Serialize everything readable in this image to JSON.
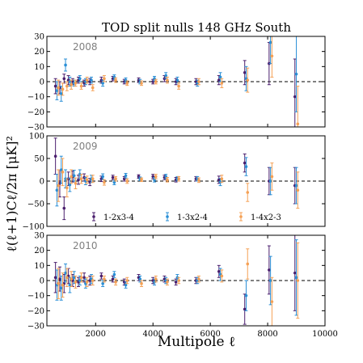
{
  "chart_data": {
    "type": "scatter",
    "title": "TOD split nulls 148 GHz South",
    "xlabel": "Multipole ℓ",
    "ylabel": "ℓ(ℓ+1)Cℓ/2π [μK]²",
    "xlim": [
      300,
      10000
    ],
    "x_ticks": [
      2000,
      4000,
      6000,
      8000,
      10000
    ],
    "grid": false,
    "legend_placement": "bottom-center of middle panel",
    "colors": {
      "1-2x3-4": "#4b1f6e",
      "1-3x2-4": "#2a8fd6",
      "1-4x2-3": "#f5a155"
    },
    "panels": [
      {
        "label": "2008",
        "ylim": [
          -30,
          30
        ],
        "y_ticks": [
          -30,
          -20,
          -10,
          0,
          10,
          20,
          30
        ],
        "reference_line": 0,
        "series": [
          {
            "name": "1-2x3-4",
            "x": [
              600,
              750,
              900,
              1050,
              1200,
              1400,
              1600,
              1800,
              2200,
              2600,
              3000,
              3500,
              4000,
              4400,
              4800,
              5500,
              6300,
              7200,
              8050,
              8950
            ],
            "y": [
              -3,
              -4,
              2,
              1,
              0,
              1,
              -1,
              0,
              1,
              2,
              0,
              1,
              0,
              2,
              0,
              0,
              1,
              6,
              12,
              -10
            ],
            "err": [
              5,
              4,
              3,
              3,
              2,
              2,
              2,
              2,
              2,
              1.5,
              1.5,
              1.5,
              1.5,
              2,
              2,
              2,
              3,
              8,
              14,
              25
            ]
          },
          {
            "name": "1-3x2-4",
            "x": [
              650,
              800,
              950,
              1100,
              1250,
              1450,
              1650,
              1850,
              2250,
              2650,
              3050,
              3550,
              4050,
              4450,
              4850,
              5550,
              6350,
              7250,
              8100,
              9000
            ],
            "y": [
              -6,
              -8,
              11,
              0,
              -1,
              2,
              0,
              1,
              -1,
              3,
              1,
              0,
              2,
              4,
              1,
              -1,
              3,
              2,
              26,
              5
            ],
            "err": [
              6,
              5,
              4,
              3,
              2,
              2,
              2,
              2,
              2,
              1.5,
              1.5,
              1.5,
              1.5,
              2,
              2,
              2,
              3,
              8,
              14,
              25
            ]
          },
          {
            "name": "1-4x2-3",
            "x": [
              700,
              850,
              1000,
              1150,
              1300,
              1500,
              1700,
              1900,
              2300,
              2700,
              3100,
              3600,
              4100,
              4500,
              4900,
              5600,
              6400,
              7300,
              8150,
              9050
            ],
            "y": [
              -4,
              -5,
              -3,
              -2,
              -1,
              -3,
              1,
              -4,
              2,
              1,
              -1,
              -1,
              0,
              1,
              -3,
              0,
              -1,
              1,
              17,
              -28
            ],
            "err": [
              5,
              4,
              3,
              3,
              2,
              2,
              2,
              2,
              2,
              1.5,
              1.5,
              1.5,
              1.5,
              2,
              2,
              2,
              3,
              8,
              14,
              25
            ]
          }
        ]
      },
      {
        "label": "2009",
        "ylim": [
          -100,
          100
        ],
        "y_ticks": [
          -100,
          -50,
          0,
          50,
          100
        ],
        "reference_line": 0,
        "series": [
          {
            "name": "1-2x3-4",
            "x": [
              600,
              750,
              900,
              1050,
              1200,
              1400,
              1600,
              1800,
              2200,
              2600,
              3000,
              3500,
              4000,
              4400,
              4800,
              5500,
              6300,
              7200,
              8050,
              8950
            ],
            "y": [
              55,
              -5,
              -60,
              5,
              10,
              3,
              8,
              -2,
              5,
              8,
              5,
              10,
              10,
              8,
              3,
              5,
              3,
              40,
              0,
              -10
            ],
            "err": [
              40,
              30,
              25,
              15,
              12,
              10,
              8,
              8,
              6,
              5,
              5,
              4,
              5,
              5,
              5,
              5,
              8,
              20,
              30,
              40
            ]
          },
          {
            "name": "1-3x2-4",
            "x": [
              650,
              800,
              950,
              1100,
              1250,
              1450,
              1650,
              1850,
              2250,
              2650,
              3050,
              3550,
              4050,
              4450,
              4850,
              5550,
              6350,
              7250,
              8100,
              9000
            ],
            "y": [
              -20,
              25,
              5,
              -8,
              12,
              15,
              0,
              5,
              10,
              -3,
              12,
              5,
              3,
              10,
              5,
              5,
              -2,
              32,
              0,
              -10
            ],
            "err": [
              35,
              30,
              20,
              15,
              12,
              10,
              8,
              8,
              6,
              5,
              5,
              4,
              5,
              5,
              5,
              5,
              8,
              20,
              30,
              40
            ]
          },
          {
            "name": "1-4x2-3",
            "x": [
              700,
              850,
              1000,
              1150,
              1300,
              1500,
              1700,
              1900,
              2300,
              2700,
              3100,
              3600,
              4100,
              4500,
              4900,
              5600,
              6400,
              7300,
              8150,
              9050
            ],
            "y": [
              -10,
              20,
              -15,
              10,
              -5,
              5,
              3,
              5,
              -3,
              5,
              0,
              3,
              10,
              3,
              5,
              2,
              5,
              -25,
              10,
              -20
            ],
            "err": [
              35,
              30,
              20,
              15,
              12,
              10,
              8,
              8,
              6,
              5,
              5,
              4,
              5,
              5,
              5,
              5,
              8,
              20,
              30,
              40
            ]
          }
        ]
      },
      {
        "label": "2010",
        "ylim": [
          -30,
          30
        ],
        "y_ticks": [
          -30,
          -20,
          -10,
          0,
          10,
          20,
          30
        ],
        "reference_line": 0,
        "series": [
          {
            "name": "1-2x3-4",
            "x": [
              600,
              750,
              900,
              1050,
              1200,
              1400,
              1600,
              1800,
              2200,
              2600,
              3000,
              3500,
              4000,
              4400,
              4800,
              5500,
              6300,
              7200,
              8050,
              8950
            ],
            "y": [
              2,
              1,
              -2,
              3,
              0,
              -1,
              2,
              0,
              3,
              1,
              -1,
              2,
              0,
              1,
              -1,
              0,
              6,
              -19,
              7,
              5
            ],
            "err": [
              10,
              8,
              6,
              5,
              4,
              3,
              3,
              3,
              2,
              2,
              2,
              2,
              2,
              2,
              2,
              2,
              4,
              10,
              16,
              25
            ]
          },
          {
            "name": "1-3x2-4",
            "x": [
              650,
              800,
              950,
              1100,
              1250,
              1450,
              1650,
              1850,
              2250,
              2650,
              3050,
              3550,
              4050,
              4450,
              4850,
              5550,
              6350,
              7250,
              8100,
              9000
            ],
            "y": [
              -3,
              -5,
              5,
              -3,
              2,
              0,
              -2,
              1,
              -2,
              4,
              -3,
              1,
              -1,
              0,
              2,
              0,
              4,
              -10,
              0,
              2
            ],
            "err": [
              10,
              8,
              6,
              5,
              4,
              3,
              3,
              3,
              2,
              2,
              2,
              2,
              2,
              2,
              2,
              2,
              4,
              10,
              16,
              25
            ]
          },
          {
            "name": "1-4x2-3",
            "x": [
              700,
              850,
              1000,
              1150,
              1300,
              1500,
              1700,
              1900,
              2300,
              2700,
              3100,
              3600,
              4100,
              4500,
              4900,
              5600,
              6400,
              7300,
              8150,
              9050
            ],
            "y": [
              -2,
              -3,
              2,
              1,
              -1,
              2,
              -1,
              0,
              1,
              -1,
              0,
              -2,
              1,
              -1,
              0,
              1,
              3,
              11,
              -14,
              0
            ],
            "err": [
              10,
              8,
              6,
              5,
              4,
              3,
              3,
              3,
              2,
              2,
              2,
              2,
              2,
              2,
              2,
              2,
              4,
              10,
              16,
              25
            ]
          }
        ]
      }
    ]
  }
}
